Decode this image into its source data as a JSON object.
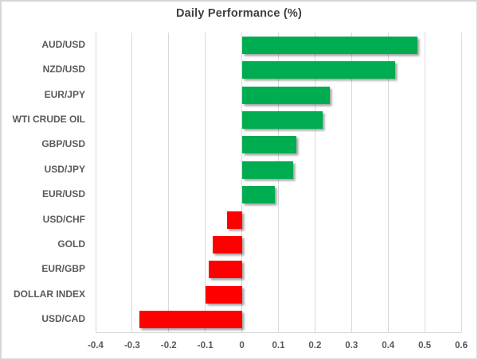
{
  "title": "Daily Performance (%)",
  "chart_data": {
    "type": "bar",
    "orientation": "horizontal",
    "title": "Daily Performance (%)",
    "xlabel": "",
    "ylabel": "",
    "categories": [
      "AUD/USD",
      "NZD/USD",
      "EUR/JPY",
      "WTI CRUDE OIL",
      "GBP/USD",
      "USD/JPY",
      "EUR/USD",
      "USD/CHF",
      "GOLD",
      "EUR/GBP",
      "DOLLAR INDEX",
      "USD/CAD"
    ],
    "values": [
      0.48,
      0.42,
      0.24,
      0.22,
      0.15,
      0.14,
      0.09,
      -0.04,
      -0.08,
      -0.09,
      -0.1,
      -0.28
    ],
    "xlim": [
      -0.4,
      0.6
    ],
    "x_ticks": [
      -0.4,
      -0.3,
      -0.2,
      -0.1,
      0,
      0.1,
      0.2,
      0.3,
      0.4,
      0.5,
      0.6
    ],
    "x_tick_labels": [
      "-0.4",
      "-0.3",
      "-0.2",
      "-0.1",
      "0",
      "0.1",
      "0.2",
      "0.3",
      "0.4",
      "0.5",
      "0.6"
    ],
    "grid": "vertical-only",
    "legend": false,
    "colors": {
      "positive": "#00AC50",
      "negative": "#FF0000",
      "gridline": "#d9d9d9",
      "label_text": "#595959",
      "title_text": "#3f3f3f"
    }
  }
}
